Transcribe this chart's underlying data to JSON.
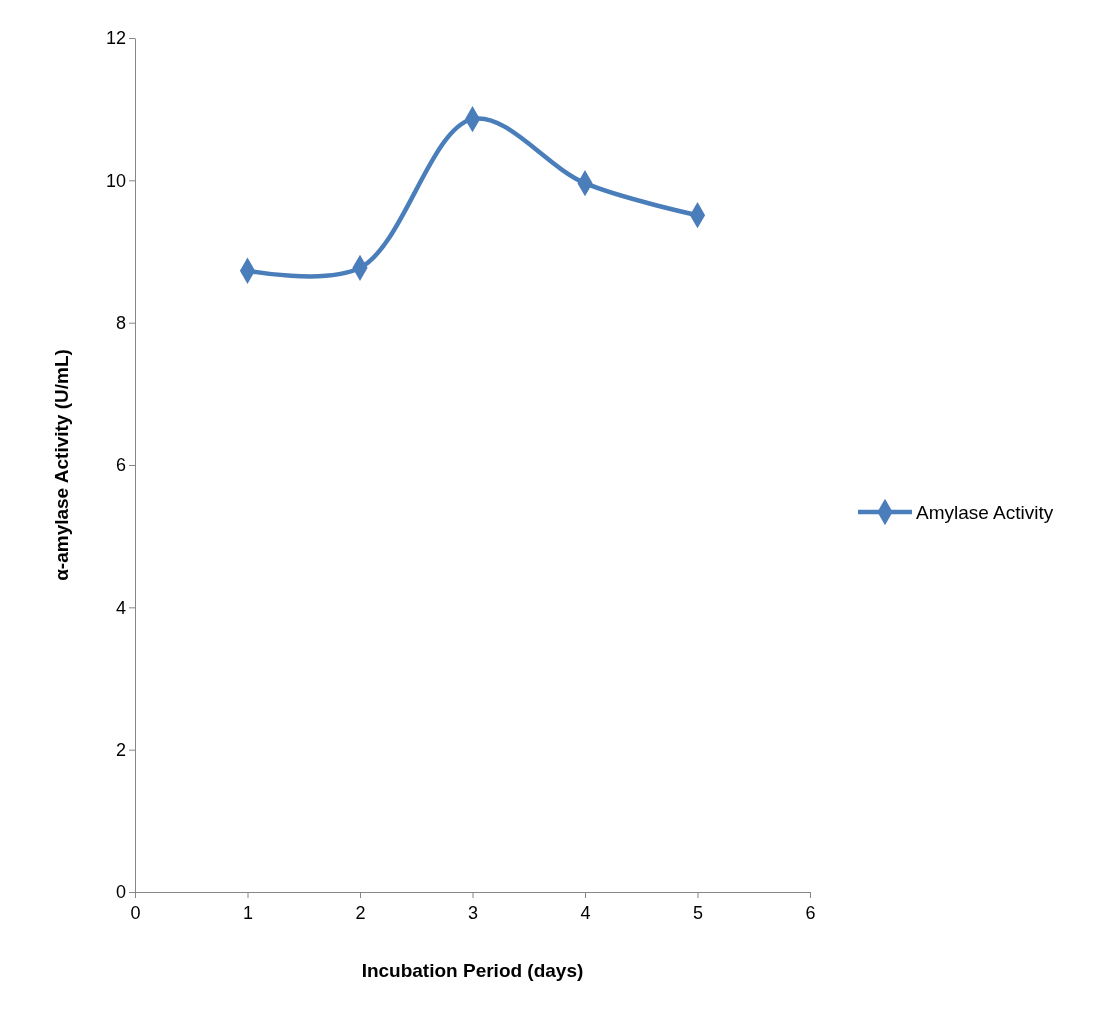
{
  "chart_data": {
    "type": "line",
    "xlabel": "Incubation Period (days)",
    "ylabel": "α-amylase Activity (U/mL)",
    "x": [
      1,
      2,
      3,
      4,
      5
    ],
    "series": [
      {
        "name": "Amylase Activity",
        "color": "#4a7ebb",
        "values": [
          8.73,
          8.77,
          10.86,
          9.96,
          9.51
        ]
      }
    ],
    "xlim": [
      0,
      6
    ],
    "xticks": [
      0,
      1,
      2,
      3,
      4,
      5,
      6
    ],
    "ylim": [
      0,
      12
    ],
    "yticks": [
      0,
      2,
      4,
      6,
      8,
      10,
      12
    ],
    "grid": false,
    "legend": "right",
    "marker": "diamond",
    "line_style": "solid"
  }
}
